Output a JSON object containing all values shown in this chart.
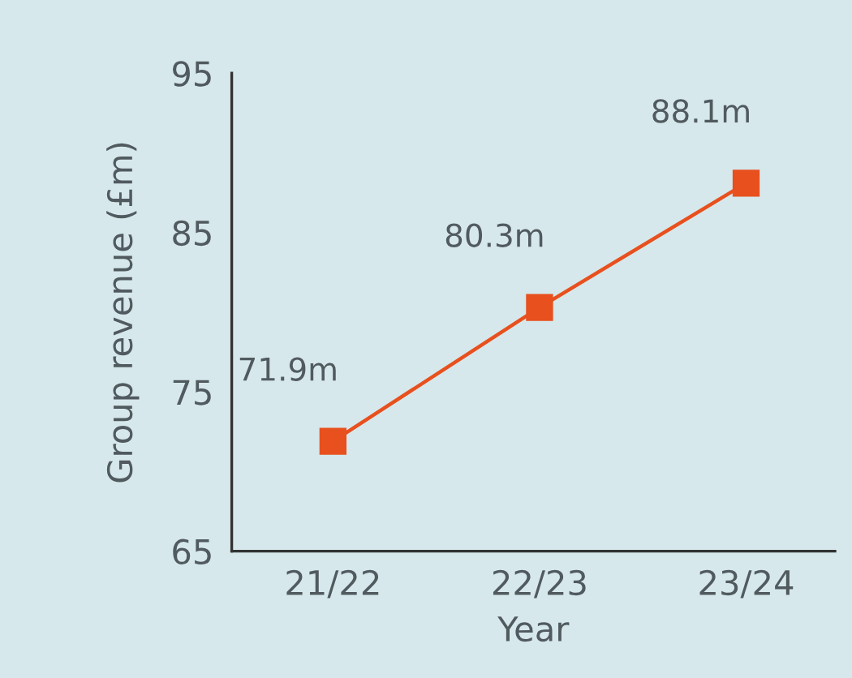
{
  "chart_data": {
    "type": "line",
    "xlabel": "Year",
    "ylabel": "Group revenue (£m)",
    "categories": [
      "21/22",
      "22/23",
      "23/24"
    ],
    "series": [
      {
        "color": "#e8501e",
        "values": [
          71.9,
          80.3,
          88.1
        ],
        "value_labels": [
          "71.9m",
          "80.3m",
          "88.1m"
        ]
      }
    ],
    "ylim": [
      65,
      95
    ],
    "yticks": [
      65,
      75,
      85,
      95
    ],
    "grid": false,
    "marker": "square",
    "line_style": "solid"
  }
}
